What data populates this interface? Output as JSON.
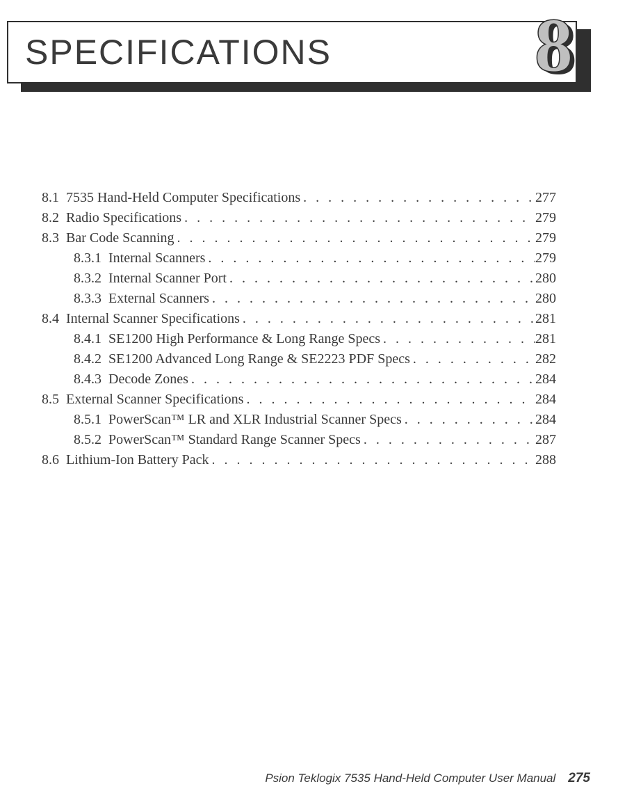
{
  "header": {
    "title": "SPECIFICATIONS"
  },
  "chapter_number": "8",
  "toc": [
    {
      "num": "8.1",
      "title": "7535 Hand-Held Computer Specifications",
      "page": "277",
      "level": 0
    },
    {
      "num": "8.2",
      "title": "Radio Specifications",
      "page": "279",
      "level": 0
    },
    {
      "num": "8.3",
      "title": "Bar Code Scanning",
      "page": "279",
      "level": 0
    },
    {
      "num": "8.3.1",
      "title": "Internal Scanners",
      "page": "279",
      "level": 1
    },
    {
      "num": "8.3.2",
      "title": "Internal Scanner Port",
      "page": "280",
      "level": 1
    },
    {
      "num": "8.3.3",
      "title": "External Scanners",
      "page": "280",
      "level": 1
    },
    {
      "num": "8.4",
      "title": "Internal Scanner Specifications",
      "page": "281",
      "level": 0
    },
    {
      "num": "8.4.1",
      "title": "SE1200 High Performance & Long Range Specs",
      "page": "281",
      "level": 1
    },
    {
      "num": "8.4.2",
      "title": "SE1200 Advanced Long Range & SE2223 PDF Specs",
      "page": "282",
      "level": 1
    },
    {
      "num": "8.4.3",
      "title": "Decode Zones",
      "page": "284",
      "level": 1
    },
    {
      "num": "8.5",
      "title": "External Scanner Specifications",
      "page": "284",
      "level": 0
    },
    {
      "num": "8.5.1",
      "title": "PowerScan™ LR and XLR Industrial Scanner Specs",
      "page": "284",
      "level": 1
    },
    {
      "num": "8.5.2",
      "title": "PowerScan™ Standard Range Scanner Specs",
      "page": "287",
      "level": 1
    },
    {
      "num": "8.6",
      "title": "Lithium-Ion Battery Pack",
      "page": "288",
      "level": 0
    }
  ],
  "footer": {
    "manual_title": "Psion Teklogix 7535 Hand-Held Computer User Manual",
    "page_number": "275"
  },
  "style": {
    "text_color": "#3a3a3a",
    "bg_color": "#ffffff",
    "shadow_color": "#2f2f2f",
    "chapnum_fill": "#bfbfbf",
    "title_fontsize": 50,
    "body_fontsize": 20,
    "footer_fontsize": 17
  }
}
